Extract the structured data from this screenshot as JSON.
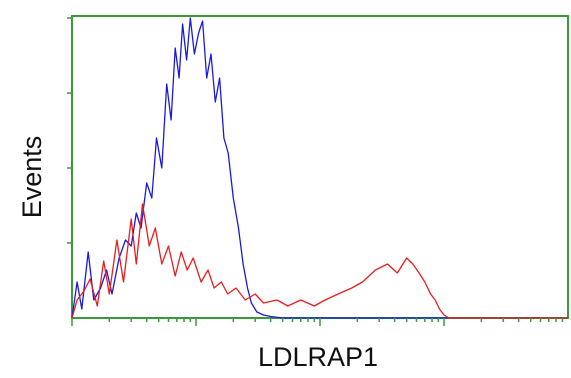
{
  "chart_data": {
    "type": "line",
    "title": "",
    "xlabel": "LDLRAP1",
    "ylabel": "Events",
    "x_scale": "log",
    "xlim": [
      1,
      10000
    ],
    "ylim": [
      0,
      100
    ],
    "grid": false,
    "legend": "none",
    "frame_color": "#3a9a3a",
    "series": [
      {
        "color": "#1a1adc",
        "points": [
          [
            1.0,
            0
          ],
          [
            1.1,
            12
          ],
          [
            1.2,
            3
          ],
          [
            1.35,
            22
          ],
          [
            1.5,
            6
          ],
          [
            1.7,
            10
          ],
          [
            1.9,
            16
          ],
          [
            2.1,
            8
          ],
          [
            2.4,
            20
          ],
          [
            2.7,
            26
          ],
          [
            3.0,
            24
          ],
          [
            3.3,
            35
          ],
          [
            3.6,
            30
          ],
          [
            4.0,
            45
          ],
          [
            4.4,
            40
          ],
          [
            4.8,
            60
          ],
          [
            5.3,
            50
          ],
          [
            5.8,
            78
          ],
          [
            6.3,
            66
          ],
          [
            6.8,
            90
          ],
          [
            7.3,
            80
          ],
          [
            7.8,
            98
          ],
          [
            8.4,
            86
          ],
          [
            9.0,
            100
          ],
          [
            9.7,
            88
          ],
          [
            10.5,
            95
          ],
          [
            11.3,
            99
          ],
          [
            12.2,
            80
          ],
          [
            13.2,
            88
          ],
          [
            14.3,
            72
          ],
          [
            15.5,
            80
          ],
          [
            16.8,
            60
          ],
          [
            18.2,
            55
          ],
          [
            20,
            40
          ],
          [
            22,
            30
          ],
          [
            24,
            18
          ],
          [
            26,
            10
          ],
          [
            28,
            5
          ],
          [
            31,
            2
          ],
          [
            35,
            1
          ],
          [
            40,
            0.5
          ],
          [
            50,
            0
          ],
          [
            100,
            0
          ],
          [
            1000,
            0
          ],
          [
            10000,
            0
          ]
        ]
      },
      {
        "color": "#e81e1e",
        "points": [
          [
            1.0,
            0
          ],
          [
            1.1,
            6
          ],
          [
            1.25,
            9
          ],
          [
            1.4,
            13
          ],
          [
            1.6,
            4
          ],
          [
            1.8,
            19
          ],
          [
            2.0,
            8
          ],
          [
            2.3,
            26
          ],
          [
            2.6,
            12
          ],
          [
            3.0,
            33
          ],
          [
            3.3,
            18
          ],
          [
            3.7,
            38
          ],
          [
            4.2,
            24
          ],
          [
            4.7,
            30
          ],
          [
            5.3,
            18
          ],
          [
            6.0,
            24
          ],
          [
            6.8,
            14
          ],
          [
            7.6,
            22
          ],
          [
            8.5,
            16
          ],
          [
            9.5,
            20
          ],
          [
            11,
            12
          ],
          [
            12.5,
            16
          ],
          [
            14,
            10
          ],
          [
            16,
            12
          ],
          [
            18,
            8
          ],
          [
            21,
            10
          ],
          [
            25,
            6
          ],
          [
            30,
            8
          ],
          [
            35,
            5
          ],
          [
            45,
            6
          ],
          [
            55,
            4
          ],
          [
            70,
            6
          ],
          [
            90,
            4
          ],
          [
            110,
            6
          ],
          [
            140,
            8
          ],
          [
            180,
            10
          ],
          [
            220,
            12
          ],
          [
            280,
            16
          ],
          [
            350,
            18
          ],
          [
            420,
            15
          ],
          [
            500,
            20
          ],
          [
            560,
            18
          ],
          [
            630,
            15
          ],
          [
            700,
            12
          ],
          [
            780,
            8
          ],
          [
            850,
            6
          ],
          [
            920,
            3
          ],
          [
            1000,
            1
          ],
          [
            1100,
            0
          ],
          [
            2000,
            0
          ],
          [
            10000,
            0
          ]
        ]
      }
    ]
  }
}
